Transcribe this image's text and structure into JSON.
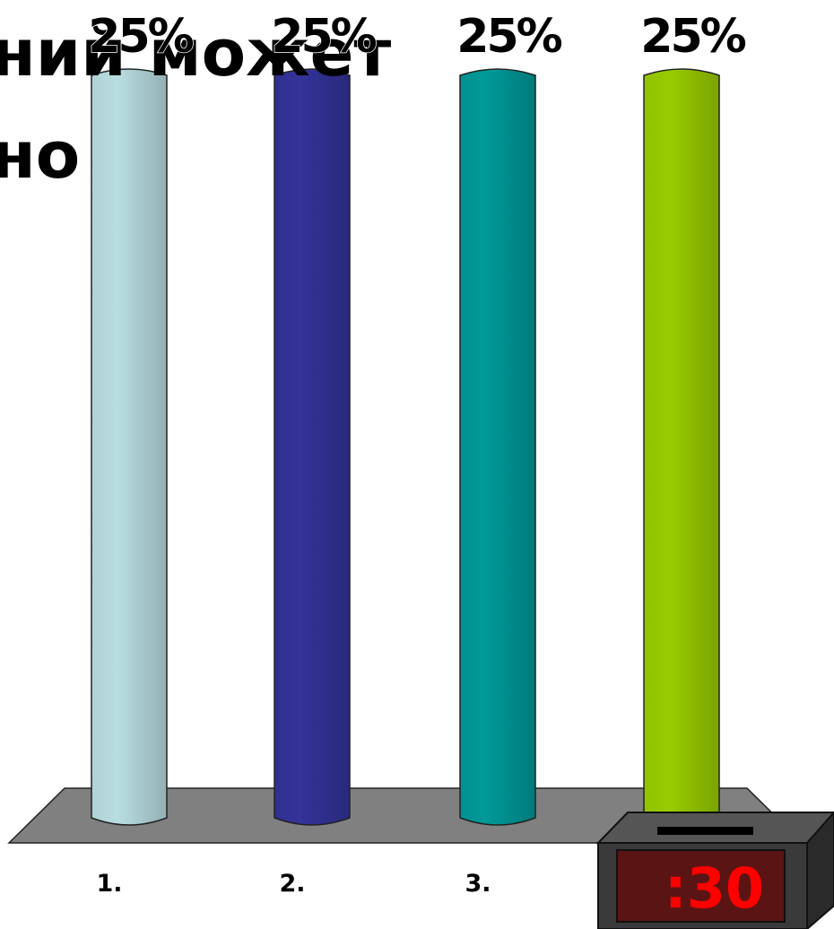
{
  "chart_data": {
    "type": "bar",
    "title": [
      "ний может",
      "но"
    ],
    "categories": [
      "1.",
      "2.",
      "3.",
      null
    ],
    "values": [
      25,
      25,
      25,
      25
    ],
    "value_labels": [
      "25%",
      "25%",
      "25%",
      "25%"
    ],
    "colors": [
      "#b8dde1",
      "#333399",
      "#009999",
      "#99cc00"
    ]
  },
  "timer": {
    "text": ":30"
  }
}
